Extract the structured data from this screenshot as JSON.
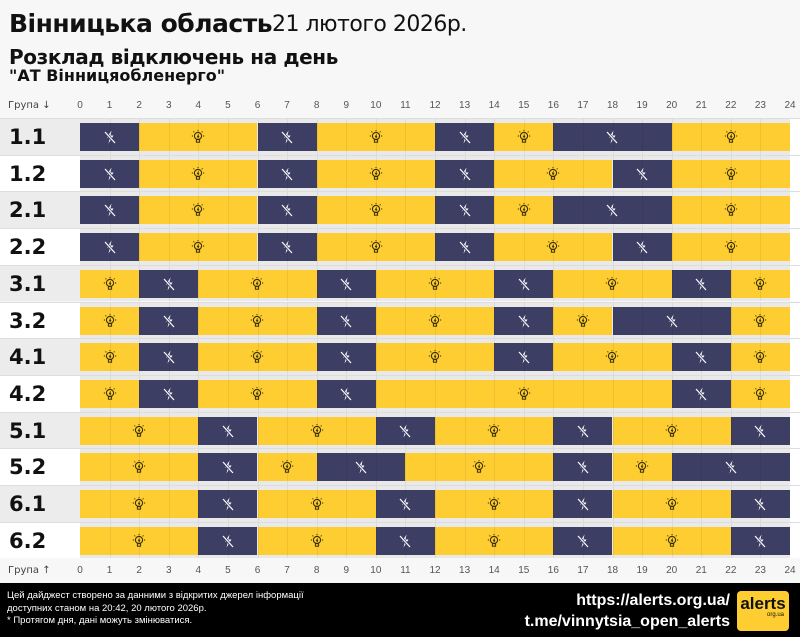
{
  "header": {
    "region": "Вінницька область",
    "date": "21 лютого 2026р.",
    "subtitle": "Розклад відключень на день",
    "company": "\"АТ Вінницяобленерго\""
  },
  "axis": {
    "top_label": "Група ↓",
    "bottom_label": "Група ↑",
    "hours": [
      "0",
      "1",
      "2",
      "3",
      "4",
      "5",
      "6",
      "7",
      "8",
      "9",
      "10",
      "11",
      "12",
      "13",
      "14",
      "15",
      "16",
      "17",
      "18",
      "19",
      "20",
      "21",
      "22",
      "23",
      "24"
    ]
  },
  "colors": {
    "on": "#fdcd32",
    "off": "#3d3e64"
  },
  "icons": {
    "on": "lightbulb-icon",
    "off": "power-off-icon"
  },
  "groups": [
    {
      "label": "1.1",
      "off": [
        [
          0,
          2
        ],
        [
          6,
          8
        ],
        [
          12,
          14
        ],
        [
          16,
          20
        ]
      ]
    },
    {
      "label": "1.2",
      "off": [
        [
          0,
          2
        ],
        [
          6,
          8
        ],
        [
          12,
          14
        ],
        [
          18,
          20
        ]
      ]
    },
    {
      "label": "2.1",
      "off": [
        [
          0,
          2
        ],
        [
          6,
          8
        ],
        [
          12,
          14
        ],
        [
          16,
          20
        ]
      ]
    },
    {
      "label": "2.2",
      "off": [
        [
          0,
          2
        ],
        [
          6,
          8
        ],
        [
          12,
          14
        ],
        [
          18,
          20
        ]
      ]
    },
    {
      "label": "3.1",
      "off": [
        [
          2,
          4
        ],
        [
          8,
          10
        ],
        [
          14,
          16
        ],
        [
          20,
          22
        ]
      ]
    },
    {
      "label": "3.2",
      "off": [
        [
          2,
          4
        ],
        [
          8,
          10
        ],
        [
          14,
          16
        ],
        [
          18,
          22
        ]
      ]
    },
    {
      "label": "4.1",
      "off": [
        [
          2,
          4
        ],
        [
          8,
          10
        ],
        [
          14,
          16
        ],
        [
          20,
          22
        ]
      ]
    },
    {
      "label": "4.2",
      "off": [
        [
          2,
          4
        ],
        [
          8,
          10
        ],
        [
          20,
          22
        ]
      ]
    },
    {
      "label": "5.1",
      "off": [
        [
          4,
          6
        ],
        [
          10,
          12
        ],
        [
          16,
          18
        ],
        [
          22,
          24
        ]
      ]
    },
    {
      "label": "5.2",
      "off": [
        [
          4,
          6
        ],
        [
          8,
          11
        ],
        [
          16,
          18
        ],
        [
          20,
          24
        ]
      ]
    },
    {
      "label": "6.1",
      "off": [
        [
          4,
          6
        ],
        [
          10,
          12
        ],
        [
          16,
          18
        ],
        [
          22,
          24
        ]
      ]
    },
    {
      "label": "6.2",
      "off": [
        [
          4,
          6
        ],
        [
          10,
          12
        ],
        [
          16,
          18
        ],
        [
          22,
          24
        ]
      ]
    }
  ],
  "footer": {
    "note_lines": [
      "Цей дайджест створено за данними з відкритих джерел інформації",
      "доступних станом на 20:42, 20 лютого 2026р.",
      "* Протягом дня, дані можуть змінюватися."
    ],
    "link1": "https://alerts.org.ua/",
    "link2": "t.me/vinnytsia_open_alerts",
    "logo_text": "alerts",
    "logo_sub": "org.ua"
  }
}
